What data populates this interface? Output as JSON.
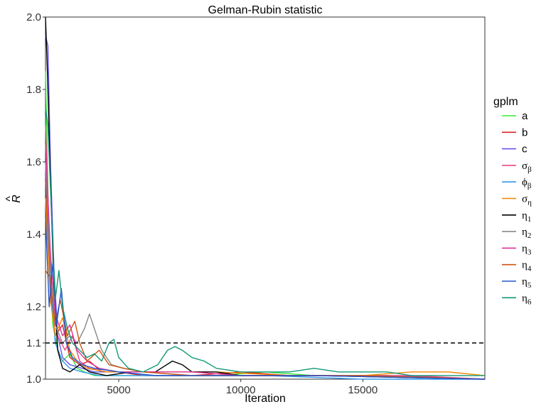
{
  "chart_data": {
    "type": "line",
    "title": "Gelman-Rubin statistic",
    "xlabel": "Iteration",
    "ylabel_main": "R",
    "ylabel_hat": "^",
    "xlim": [
      2000,
      20000
    ],
    "ylim": [
      1.0,
      2.0
    ],
    "x_ticks": [
      5000,
      10000,
      15000
    ],
    "x_tick_labels": [
      "5000",
      "10000",
      "15000"
    ],
    "y_ticks": [
      1.0,
      1.1,
      1.2,
      1.4,
      1.6,
      1.8,
      2.0
    ],
    "y_tick_labels": [
      "1.0",
      "1.1",
      "1.2",
      "1.4",
      "1.6",
      "1.8",
      "2.0"
    ],
    "reference_line": 1.1,
    "grid": false,
    "legend_position": "right",
    "legend_title": "gplm",
    "series": [
      {
        "name": "a",
        "base": "a",
        "sub": "",
        "color": "#33ee33",
        "points": [
          [
            2000,
            1.85
          ],
          [
            2150,
            1.35
          ],
          [
            2300,
            1.15
          ],
          [
            2500,
            1.08
          ],
          [
            2700,
            1.05
          ],
          [
            3000,
            1.07
          ],
          [
            3300,
            1.03
          ],
          [
            3600,
            1.02
          ],
          [
            4000,
            1.01
          ],
          [
            5000,
            1.01
          ],
          [
            7000,
            1.01
          ],
          [
            9000,
            1.01
          ],
          [
            11000,
            1.02
          ],
          [
            13000,
            1.01
          ],
          [
            16000,
            1.01
          ],
          [
            20000,
            1.0
          ]
        ]
      },
      {
        "name": "b",
        "base": "b",
        "sub": "",
        "color": "#dd2222",
        "points": [
          [
            2000,
            1.55
          ],
          [
            2200,
            1.25
          ],
          [
            2400,
            1.12
          ],
          [
            2700,
            1.15
          ],
          [
            3000,
            1.06
          ],
          [
            3400,
            1.04
          ],
          [
            3800,
            1.05
          ],
          [
            4300,
            1.02
          ],
          [
            5000,
            1.02
          ],
          [
            6000,
            1.01
          ],
          [
            8000,
            1.01
          ],
          [
            10000,
            1.02
          ],
          [
            12000,
            1.01
          ],
          [
            15000,
            1.01
          ],
          [
            20000,
            1.0
          ]
        ]
      },
      {
        "name": "c",
        "base": "c",
        "sub": "",
        "color": "#6655ee",
        "points": [
          [
            2000,
            1.95
          ],
          [
            2100,
            1.92
          ],
          [
            2200,
            1.6
          ],
          [
            2350,
            1.3
          ],
          [
            2500,
            1.12
          ],
          [
            2700,
            1.06
          ],
          [
            3000,
            1.04
          ],
          [
            3500,
            1.03
          ],
          [
            4000,
            1.02
          ],
          [
            5000,
            1.02
          ],
          [
            6500,
            1.01
          ],
          [
            9000,
            1.01
          ],
          [
            12000,
            1.01
          ],
          [
            16000,
            1.01
          ],
          [
            20000,
            1.0
          ]
        ]
      },
      {
        "name": "σβ",
        "base": "σ",
        "sub": "β",
        "color": "#ee4488",
        "points": [
          [
            2000,
            1.7
          ],
          [
            2150,
            1.4
          ],
          [
            2300,
            1.2
          ],
          [
            2500,
            1.12
          ],
          [
            2800,
            1.08
          ],
          [
            3100,
            1.12
          ],
          [
            3400,
            1.05
          ],
          [
            3800,
            1.03
          ],
          [
            4500,
            1.02
          ],
          [
            6000,
            1.02
          ],
          [
            8000,
            1.02
          ],
          [
            10000,
            1.01
          ],
          [
            13000,
            1.01
          ],
          [
            17000,
            1.01
          ],
          [
            20000,
            1.0
          ]
        ]
      },
      {
        "name": "ϕβ",
        "base": "ϕ",
        "sub": "β",
        "color": "#3399ee",
        "points": [
          [
            2000,
            1.6
          ],
          [
            2200,
            1.28
          ],
          [
            2400,
            1.1
          ],
          [
            2700,
            1.05
          ],
          [
            3000,
            1.03
          ],
          [
            3500,
            1.02
          ],
          [
            4200,
            1.01
          ],
          [
            5500,
            1.01
          ],
          [
            8000,
            1.01
          ],
          [
            11000,
            1.01
          ],
          [
            15000,
            1.0
          ],
          [
            20000,
            1.0
          ]
        ]
      },
      {
        "name": "ση",
        "base": "σ",
        "sub": "η",
        "color": "#ee8800",
        "points": [
          [
            2000,
            1.5
          ],
          [
            2200,
            1.22
          ],
          [
            2400,
            1.12
          ],
          [
            2700,
            1.17
          ],
          [
            3000,
            1.08
          ],
          [
            3300,
            1.05
          ],
          [
            3700,
            1.03
          ],
          [
            4500,
            1.02
          ],
          [
            6000,
            1.02
          ],
          [
            9000,
            1.02
          ],
          [
            12000,
            1.01
          ],
          [
            15000,
            1.01
          ],
          [
            17000,
            1.02
          ],
          [
            18500,
            1.02
          ],
          [
            20000,
            1.01
          ]
        ]
      },
      {
        "name": "η1",
        "base": "η",
        "sub": "1",
        "color": "#000000",
        "points": [
          [
            2000,
            2.0
          ],
          [
            2080,
            1.85
          ],
          [
            2200,
            1.55
          ],
          [
            2350,
            1.25
          ],
          [
            2500,
            1.08
          ],
          [
            2700,
            1.03
          ],
          [
            3000,
            1.02
          ],
          [
            3400,
            1.04
          ],
          [
            3800,
            1.02
          ],
          [
            4500,
            1.01
          ],
          [
            5500,
            1.02
          ],
          [
            6500,
            1.02
          ],
          [
            7200,
            1.05
          ],
          [
            7600,
            1.04
          ],
          [
            8000,
            1.02
          ],
          [
            9000,
            1.02
          ],
          [
            10000,
            1.01
          ],
          [
            13000,
            1.01
          ],
          [
            20000,
            1.0
          ]
        ]
      },
      {
        "name": "η2",
        "base": "η",
        "sub": "2",
        "color": "#888888",
        "points": [
          [
            2000,
            1.6
          ],
          [
            2200,
            1.3
          ],
          [
            2400,
            1.15
          ],
          [
            2700,
            1.1
          ],
          [
            3000,
            1.12
          ],
          [
            3300,
            1.1
          ],
          [
            3600,
            1.14
          ],
          [
            3800,
            1.18
          ],
          [
            4000,
            1.14
          ],
          [
            4300,
            1.08
          ],
          [
            4700,
            1.04
          ],
          [
            5200,
            1.03
          ],
          [
            6000,
            1.02
          ],
          [
            8000,
            1.01
          ],
          [
            11000,
            1.01
          ],
          [
            15000,
            1.01
          ],
          [
            20000,
            1.0
          ]
        ]
      },
      {
        "name": "η3",
        "base": "η",
        "sub": "3",
        "color": "#dd3399",
        "points": [
          [
            2000,
            1.65
          ],
          [
            2200,
            1.35
          ],
          [
            2400,
            1.18
          ],
          [
            2700,
            1.12
          ],
          [
            3000,
            1.15
          ],
          [
            3300,
            1.08
          ],
          [
            3700,
            1.05
          ],
          [
            4200,
            1.03
          ],
          [
            5000,
            1.02
          ],
          [
            6500,
            1.02
          ],
          [
            8000,
            1.02
          ],
          [
            10000,
            1.01
          ],
          [
            14000,
            1.01
          ],
          [
            20000,
            1.0
          ]
        ]
      },
      {
        "name": "η4",
        "base": "η",
        "sub": "4",
        "color": "#cc5511",
        "points": [
          [
            2000,
            1.3
          ],
          [
            2200,
            1.28
          ],
          [
            2400,
            1.15
          ],
          [
            2600,
            1.22
          ],
          [
            2900,
            1.12
          ],
          [
            3200,
            1.16
          ],
          [
            3400,
            1.1
          ],
          [
            3700,
            1.05
          ],
          [
            4200,
            1.08
          ],
          [
            4600,
            1.04
          ],
          [
            5200,
            1.03
          ],
          [
            6000,
            1.02
          ],
          [
            8000,
            1.01
          ],
          [
            11000,
            1.01
          ],
          [
            15000,
            1.01
          ],
          [
            20000,
            1.0
          ]
        ]
      },
      {
        "name": "η5",
        "base": "η",
        "sub": "5",
        "color": "#2255cc",
        "points": [
          [
            2000,
            1.45
          ],
          [
            2150,
            1.2
          ],
          [
            2300,
            1.32
          ],
          [
            2450,
            1.15
          ],
          [
            2650,
            1.25
          ],
          [
            2850,
            1.1
          ],
          [
            3100,
            1.06
          ],
          [
            3500,
            1.04
          ],
          [
            4000,
            1.03
          ],
          [
            5000,
            1.02
          ],
          [
            6500,
            1.01
          ],
          [
            9000,
            1.01
          ],
          [
            13000,
            1.01
          ],
          [
            20000,
            1.0
          ]
        ]
      },
      {
        "name": "η6",
        "base": "η",
        "sub": "6",
        "color": "#119977",
        "points": [
          [
            2000,
            1.75
          ],
          [
            2100,
            1.7
          ],
          [
            2250,
            1.45
          ],
          [
            2400,
            1.22
          ],
          [
            2550,
            1.3
          ],
          [
            2700,
            1.2
          ],
          [
            2900,
            1.14
          ],
          [
            3100,
            1.1
          ],
          [
            3400,
            1.08
          ],
          [
            3700,
            1.06
          ],
          [
            4000,
            1.07
          ],
          [
            4300,
            1.05
          ],
          [
            4600,
            1.1
          ],
          [
            4800,
            1.11
          ],
          [
            5000,
            1.06
          ],
          [
            5400,
            1.03
          ],
          [
            6000,
            1.02
          ],
          [
            6600,
            1.04
          ],
          [
            7000,
            1.08
          ],
          [
            7300,
            1.09
          ],
          [
            7600,
            1.08
          ],
          [
            8000,
            1.06
          ],
          [
            8500,
            1.05
          ],
          [
            9000,
            1.03
          ],
          [
            10000,
            1.02
          ],
          [
            11000,
            1.02
          ],
          [
            12000,
            1.02
          ],
          [
            13000,
            1.03
          ],
          [
            14000,
            1.02
          ],
          [
            15000,
            1.02
          ],
          [
            16000,
            1.02
          ],
          [
            17000,
            1.01
          ],
          [
            18000,
            1.01
          ],
          [
            19000,
            1.01
          ],
          [
            20000,
            1.01
          ]
        ]
      }
    ]
  }
}
